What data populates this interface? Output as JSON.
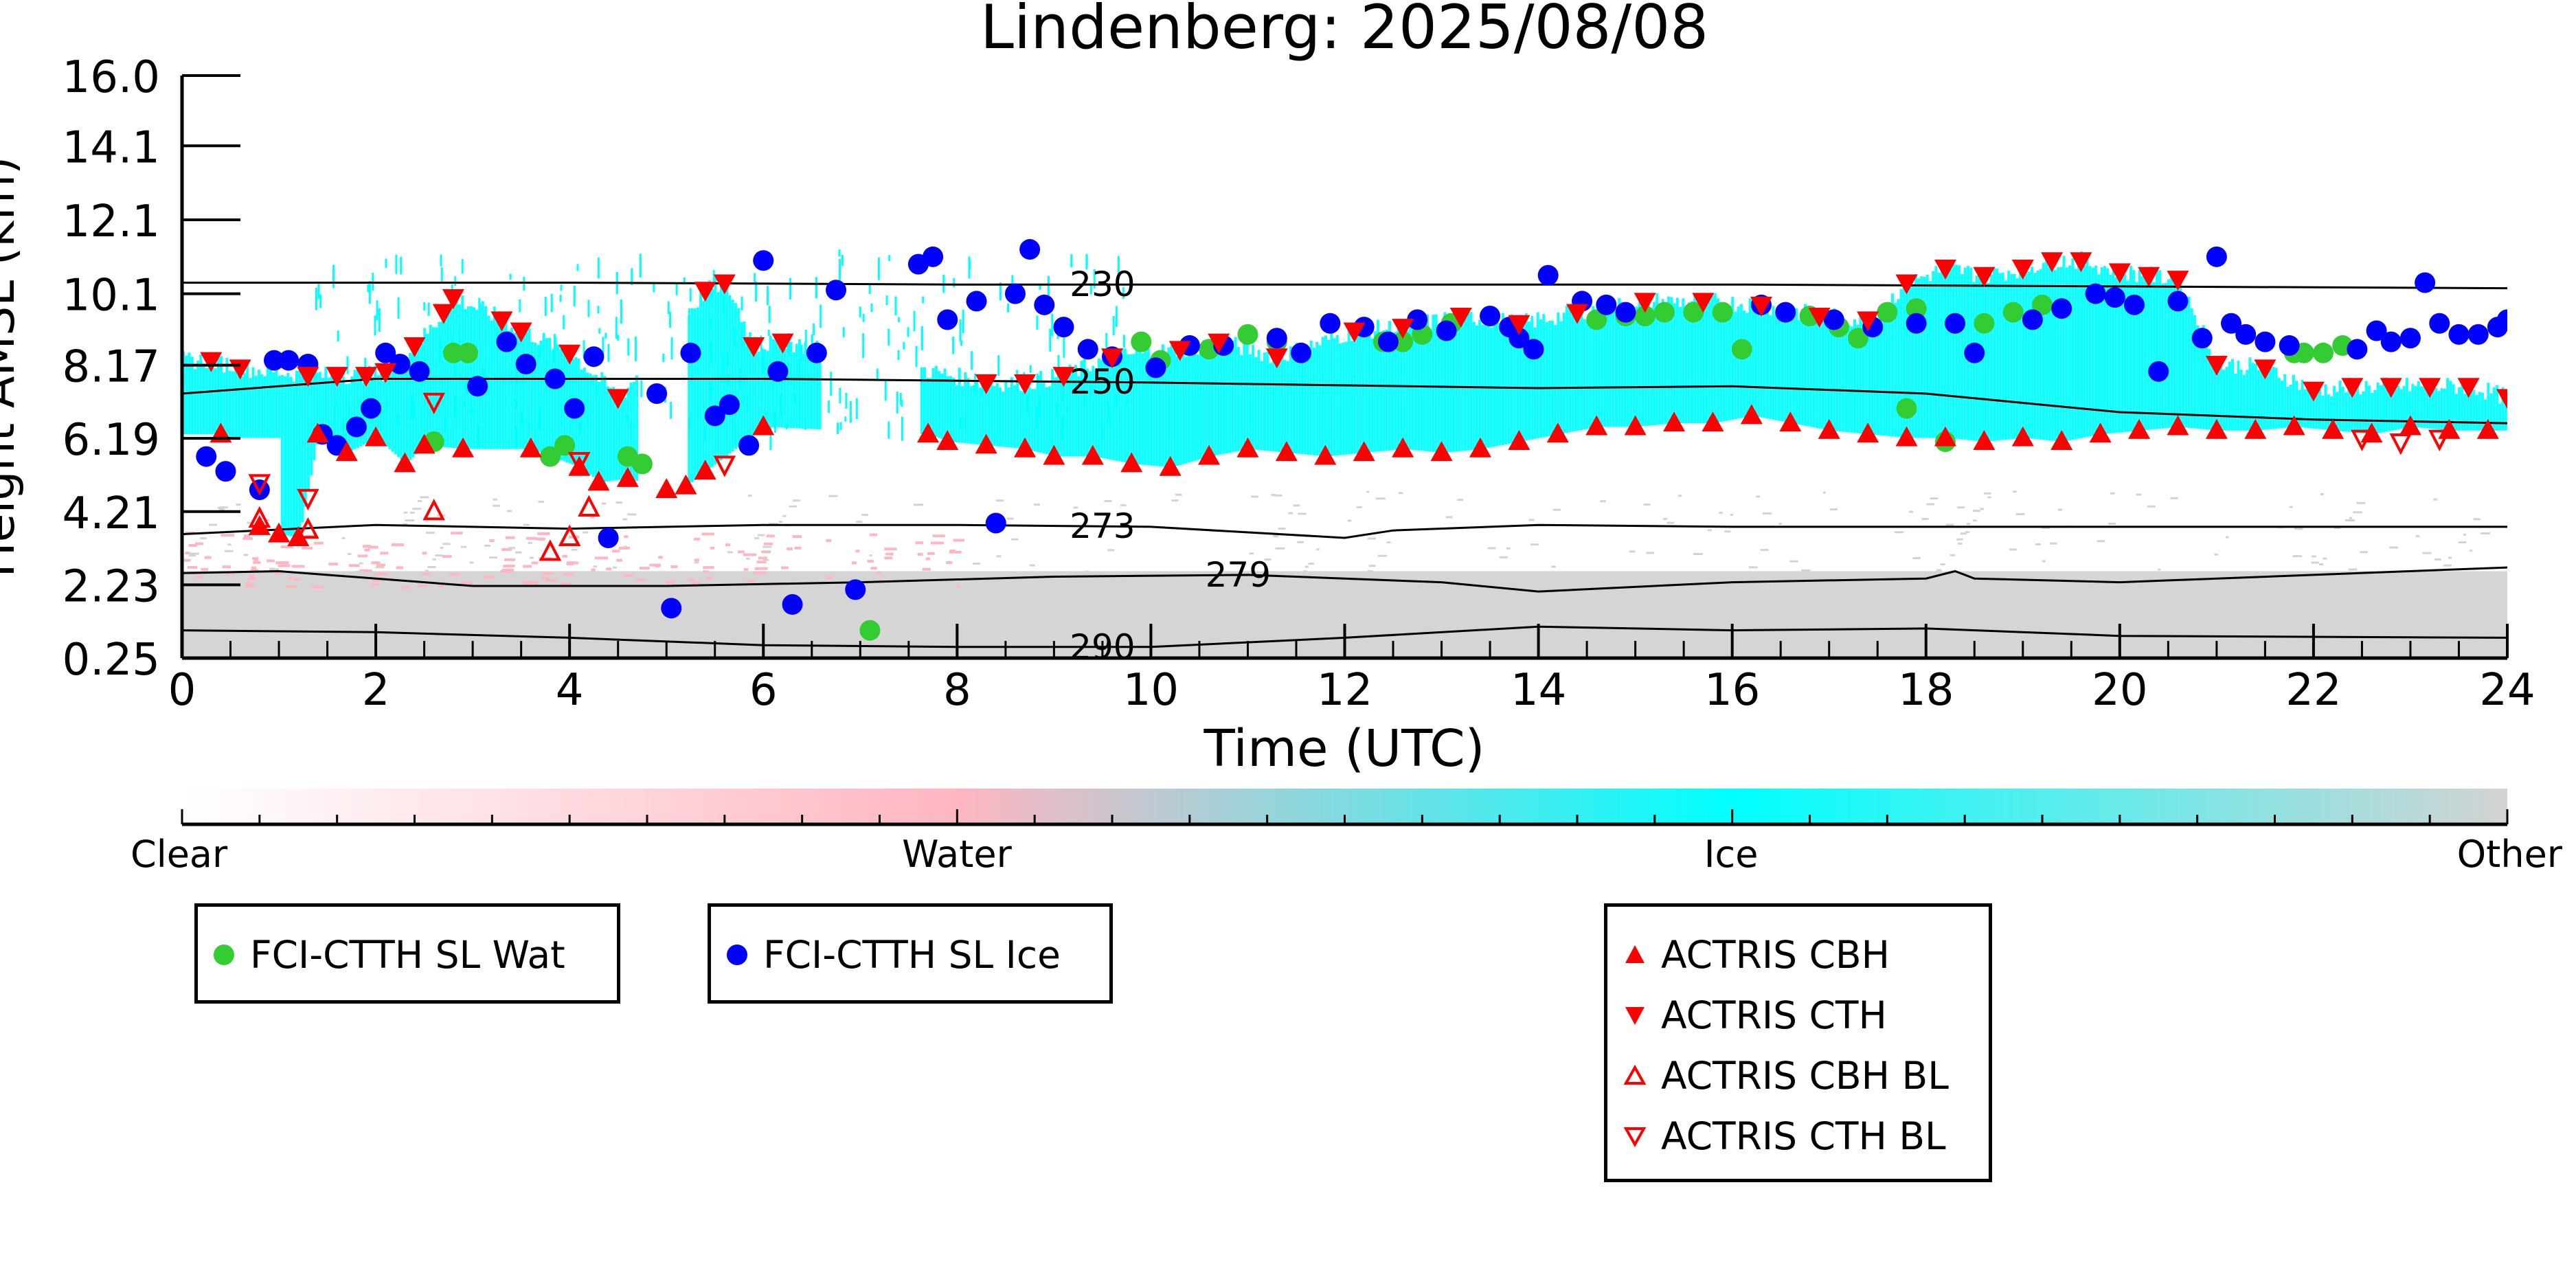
{
  "chart_data": {
    "type": "scatter",
    "title": "Lindenberg: 2025/08/08",
    "xlabel": "Time (UTC)",
    "ylabel": "Height AMSL (km)",
    "xlim": [
      0,
      24
    ],
    "ylim": [
      0.25,
      16.0
    ],
    "x_ticks": [
      "0",
      "2",
      "4",
      "6",
      "8",
      "10",
      "12",
      "14",
      "16",
      "18",
      "20",
      "22",
      "24"
    ],
    "y_ticks": [
      "0.25",
      "2.23",
      "4.21",
      "6.19",
      "8.17",
      "10.1",
      "12.1",
      "14.1",
      "16.0"
    ],
    "background_classes": {
      "labels": [
        "Clear",
        "Water",
        "Ice",
        "Other"
      ],
      "colors": [
        "#ffffff",
        "#ffb6c1",
        "#00ffff",
        "#d3d3d3"
      ]
    },
    "temperature_contours": [
      {
        "label": "230",
        "x": [
          0,
          4,
          8,
          12,
          16,
          20,
          24
        ],
        "y": [
          10.4,
          10.4,
          10.35,
          10.35,
          10.35,
          10.3,
          10.25
        ]
      },
      {
        "label": "250",
        "x": [
          0,
          2,
          6,
          10,
          14,
          16,
          18,
          20,
          22,
          24
        ],
        "y": [
          7.4,
          7.8,
          7.8,
          7.7,
          7.55,
          7.6,
          7.4,
          6.9,
          6.7,
          6.6
        ]
      },
      {
        "label": "273",
        "x": [
          0,
          2,
          4,
          6,
          8,
          10,
          12,
          12.5,
          14,
          16,
          18,
          20,
          24
        ],
        "y": [
          3.6,
          3.85,
          3.75,
          3.85,
          3.85,
          3.8,
          3.5,
          3.7,
          3.85,
          3.8,
          3.8,
          3.8,
          3.8
        ]
      },
      {
        "label": "279",
        "x": [
          0,
          1,
          3,
          5,
          7,
          9,
          11,
          13,
          14,
          16,
          18,
          18.3,
          18.5,
          20,
          24
        ],
        "y": [
          2.55,
          2.6,
          2.2,
          2.2,
          2.3,
          2.45,
          2.5,
          2.3,
          2.05,
          2.3,
          2.4,
          2.6,
          2.4,
          2.3,
          2.7
        ]
      },
      {
        "label": "290",
        "x": [
          0,
          2,
          4,
          6,
          8,
          10,
          12,
          14,
          16,
          18,
          20,
          24
        ],
        "y": [
          1.0,
          0.95,
          0.8,
          0.6,
          0.55,
          0.55,
          0.8,
          1.1,
          1.0,
          1.05,
          0.85,
          0.8
        ]
      }
    ],
    "series": [
      {
        "name": "FCI-CTTH SL Wat",
        "marker": "circle",
        "color": "#33cc33",
        "x": [
          2.6,
          2.8,
          2.95,
          3.8,
          3.95,
          4.6,
          4.75,
          7.1,
          9.9,
          10.1,
          10.4,
          10.6,
          11.0,
          11.3,
          12.4,
          12.6,
          12.8,
          13.1,
          14.6,
          14.9,
          15.1,
          15.3,
          15.6,
          15.9,
          16.1,
          16.8,
          17.1,
          17.3,
          17.6,
          17.8,
          17.9,
          18.2,
          18.6,
          18.9,
          19.2,
          21.8,
          21.9,
          22.1,
          22.3
        ],
        "y": [
          6.1,
          8.5,
          8.5,
          5.7,
          6.0,
          5.7,
          5.5,
          1.0,
          8.8,
          8.3,
          8.7,
          8.6,
          9.0,
          8.8,
          8.8,
          8.8,
          9.0,
          9.3,
          9.4,
          9.5,
          9.5,
          9.6,
          9.6,
          9.6,
          8.6,
          9.5,
          9.2,
          8.9,
          9.6,
          7.0,
          9.7,
          6.1,
          9.3,
          9.6,
          9.8,
          8.5,
          8.5,
          8.5,
          8.7
        ]
      },
      {
        "name": "FCI-CTTH SL Ice",
        "marker": "circle",
        "color": "#0000ff",
        "x": [
          0.25,
          0.45,
          0.8,
          0.95,
          1.1,
          1.3,
          1.45,
          1.6,
          1.8,
          1.95,
          2.1,
          2.25,
          2.45,
          3.05,
          3.35,
          3.55,
          3.85,
          4.05,
          4.25,
          4.4,
          4.9,
          5.05,
          5.25,
          5.5,
          5.65,
          5.85,
          6.0,
          6.15,
          6.3,
          6.55,
          6.75,
          6.95,
          7.6,
          7.75,
          7.9,
          8.2,
          8.4,
          8.6,
          8.75,
          8.9,
          9.1,
          9.35,
          9.6,
          10.05,
          10.4,
          10.75,
          11.3,
          11.55,
          11.85,
          12.2,
          12.45,
          12.75,
          13.05,
          13.5,
          13.7,
          13.8,
          13.95,
          14.1,
          14.45,
          14.7,
          14.9,
          16.3,
          16.55,
          17.05,
          17.45,
          17.9,
          18.3,
          18.5,
          19.1,
          19.4,
          19.75,
          19.95,
          20.15,
          20.4,
          20.6,
          20.85,
          21.0,
          21.15,
          21.3,
          21.5,
          21.75,
          22.45,
          22.65,
          22.8,
          23.0,
          23.15,
          23.3,
          23.5,
          23.7,
          23.9,
          24.0
        ],
        "y": [
          5.7,
          5.3,
          4.8,
          8.3,
          8.3,
          8.2,
          6.3,
          6.0,
          6.5,
          7.0,
          8.5,
          8.2,
          8.0,
          7.6,
          8.8,
          8.2,
          7.8,
          7.0,
          8.4,
          3.5,
          7.4,
          1.6,
          8.5,
          6.8,
          7.1,
          6.0,
          11.0,
          8.0,
          1.7,
          8.5,
          10.2,
          2.1,
          10.9,
          11.1,
          9.4,
          9.9,
          3.9,
          10.1,
          11.3,
          9.8,
          9.2,
          8.6,
          8.4,
          8.1,
          8.7,
          8.7,
          8.9,
          8.5,
          9.3,
          9.2,
          8.8,
          9.4,
          9.1,
          9.5,
          9.2,
          8.9,
          8.6,
          10.6,
          9.9,
          9.8,
          9.6,
          9.8,
          9.6,
          9.4,
          9.2,
          9.3,
          9.3,
          8.5,
          9.4,
          9.7,
          10.1,
          10.0,
          9.8,
          8.0,
          9.9,
          8.9,
          11.1,
          9.3,
          9.0,
          8.8,
          8.7,
          8.6,
          9.1,
          8.8,
          8.9,
          10.4,
          9.3,
          9.0,
          9.0,
          9.2,
          9.4
        ],
        "x_extra_note": ""
      },
      {
        "name": "ACTRIS CBH",
        "marker": "triangle-up-filled",
        "color": "#ff0000",
        "x": [
          0.4,
          0.8,
          1.0,
          1.2,
          1.4,
          1.7,
          2.0,
          2.3,
          2.5,
          2.9,
          3.6,
          4.1,
          4.3,
          4.6,
          5.0,
          5.2,
          5.4,
          6.0,
          7.7,
          7.9,
          8.3,
          8.7,
          9.0,
          9.4,
          9.8,
          10.2,
          10.6,
          11.0,
          11.4,
          11.8,
          12.2,
          12.6,
          13.0,
          13.4,
          13.8,
          14.2,
          14.6,
          15.0,
          15.4,
          15.8,
          16.2,
          16.6,
          17.0,
          17.4,
          17.8,
          18.2,
          18.6,
          19.0,
          19.4,
          19.8,
          20.2,
          20.6,
          21.0,
          21.4,
          21.8,
          22.2,
          22.6,
          23.0,
          23.4,
          23.8
        ],
        "y": [
          6.3,
          3.8,
          3.6,
          3.5,
          6.3,
          5.8,
          6.2,
          5.5,
          6.0,
          5.9,
          5.9,
          5.4,
          5.0,
          5.1,
          4.8,
          4.9,
          5.3,
          6.5,
          6.3,
          6.1,
          6.0,
          5.9,
          5.7,
          5.7,
          5.5,
          5.4,
          5.7,
          5.9,
          5.8,
          5.7,
          5.8,
          5.9,
          5.8,
          5.9,
          6.1,
          6.3,
          6.5,
          6.5,
          6.6,
          6.6,
          6.8,
          6.6,
          6.4,
          6.3,
          6.2,
          6.2,
          6.1,
          6.2,
          6.1,
          6.3,
          6.4,
          6.5,
          6.4,
          6.4,
          6.5,
          6.4,
          6.3,
          6.5,
          6.4,
          6.4
        ]
      },
      {
        "name": "ACTRIS CTH",
        "marker": "triangle-down-filled",
        "color": "#ff0000",
        "x": [
          0.3,
          0.6,
          1.3,
          1.6,
          1.9,
          2.1,
          2.4,
          2.7,
          2.8,
          3.3,
          3.5,
          4.0,
          4.5,
          5.4,
          5.6,
          5.9,
          6.2,
          8.3,
          8.7,
          9.1,
          9.6,
          10.3,
          10.7,
          11.3,
          12.1,
          12.6,
          13.2,
          13.8,
          14.4,
          15.1,
          15.7,
          16.3,
          16.9,
          17.4,
          17.8,
          18.2,
          18.6,
          19.0,
          19.3,
          19.6,
          20.0,
          20.3,
          20.6,
          21.0,
          21.5,
          22.0,
          22.4,
          22.8,
          23.2,
          23.6,
          24.0
        ],
        "y": [
          8.3,
          8.1,
          7.9,
          7.9,
          7.9,
          8.0,
          8.7,
          9.6,
          10.0,
          9.4,
          9.1,
          8.5,
          7.3,
          10.2,
          10.4,
          8.7,
          8.8,
          7.7,
          7.7,
          7.9,
          8.4,
          8.6,
          8.8,
          8.4,
          9.1,
          9.2,
          9.5,
          9.3,
          9.6,
          9.9,
          9.9,
          9.8,
          9.5,
          9.4,
          10.4,
          10.8,
          10.6,
          10.8,
          11.0,
          11.0,
          10.7,
          10.6,
          10.5,
          8.2,
          8.1,
          7.5,
          7.6,
          7.6,
          7.6,
          7.6,
          7.3
        ]
      },
      {
        "name": "ACTRIS CBH BL",
        "marker": "triangle-up-open",
        "color": "#ff0000",
        "x": [
          0.8,
          1.3,
          2.6,
          3.8,
          4.0,
          4.2
        ],
        "y": [
          4.0,
          3.7,
          4.2,
          3.1,
          3.5,
          4.3
        ]
      },
      {
        "name": "ACTRIS CTH BL",
        "marker": "triangle-down-open",
        "color": "#ff0000",
        "x": [
          0.8,
          1.3,
          2.6,
          4.1,
          5.6,
          22.5,
          22.9,
          23.3
        ],
        "y": [
          5.0,
          4.6,
          7.2,
          5.6,
          5.5,
          6.2,
          6.1,
          6.2
        ]
      }
    ],
    "legends": [
      {
        "entries": [
          "FCI-CTTH SL Wat"
        ]
      },
      {
        "entries": [
          "FCI-CTTH SL Ice"
        ]
      },
      {
        "entries": [
          "ACTRIS CBH",
          "ACTRIS CTH",
          "ACTRIS CBH BL",
          "ACTRIS CTH BL"
        ]
      }
    ],
    "grid": false
  },
  "legend_labels": {
    "wat": "FCI-CTTH SL Wat",
    "ice": "FCI-CTTH SL Ice",
    "cbh": "ACTRIS CBH",
    "cth": "ACTRIS CTH",
    "cbh_bl": "ACTRIS CBH BL",
    "cth_bl": "ACTRIS CTH BL"
  },
  "colorbar": {
    "labels": [
      "Clear",
      "Water",
      "Ice",
      "Other"
    ]
  }
}
